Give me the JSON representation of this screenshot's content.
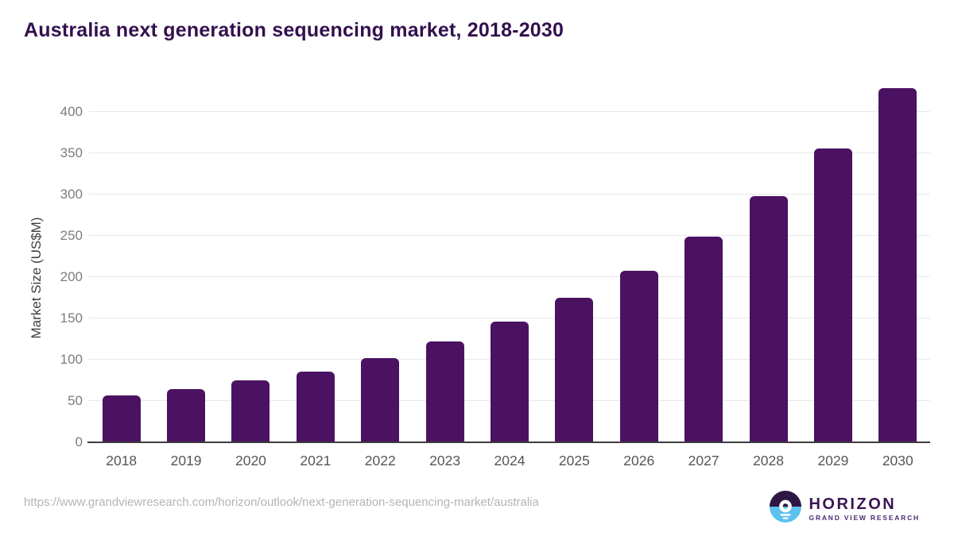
{
  "title": "Australia next generation sequencing market, 2018-2030",
  "chart_data": {
    "type": "bar",
    "title": "Australia next generation sequencing market, 2018-2030",
    "categories": [
      "2018",
      "2019",
      "2020",
      "2021",
      "2022",
      "2023",
      "2024",
      "2025",
      "2026",
      "2027",
      "2028",
      "2029",
      "2030"
    ],
    "values": [
      57,
      64,
      75,
      86,
      102,
      122,
      146,
      175,
      208,
      249,
      298,
      356,
      429
    ],
    "xlabel": "",
    "ylabel": "Market Size (US$M)",
    "ylim": [
      0,
      440
    ],
    "yticks": [
      0,
      50,
      100,
      150,
      200,
      250,
      300,
      350,
      400
    ],
    "grid": true,
    "legend": "none",
    "bar_color": "#4a1261"
  },
  "footer": {
    "source_url": "https://www.grandviewresearch.com/horizon/outlook/next-generation-sequencing-market/australia",
    "logo": {
      "name": "HORIZON",
      "tagline": "GRAND VIEW RESEARCH"
    }
  },
  "colors": {
    "title_text": "#33104e",
    "bar": "#4a1261",
    "gridline": "#e8e8e8",
    "axis_line": "#3c3c3c",
    "y_tick_text": "#7d7d7d",
    "x_tick_text": "#565656",
    "source_text": "#b4b4b9",
    "logo_purple": "#2e1745",
    "logo_blue": "#5cc1ef"
  }
}
